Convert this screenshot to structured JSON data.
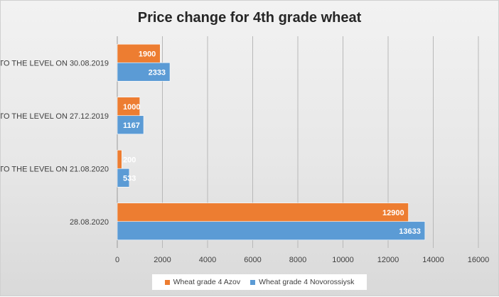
{
  "chart_data": {
    "type": "bar",
    "orientation": "horizontal",
    "title": "Price change for 4th grade wheat",
    "categories": [
      "TO THE LEVEL ON 30.08.2019",
      "TO THE LEVEL ON 27.12.2019",
      "TO THE LEVEL ON 21.08.2020",
      "28.08.2020"
    ],
    "series": [
      {
        "name": "Wheat grade 4 Azov",
        "color": "#ed7d31",
        "values": [
          1900,
          1000,
          200,
          12900
        ]
      },
      {
        "name": "Wheat grade 4 Novorossiysk",
        "color": "#5b9bd5",
        "values": [
          2333,
          1167,
          533,
          13633
        ]
      }
    ],
    "xlim": [
      0,
      16000
    ],
    "xticks": [
      0,
      2000,
      4000,
      6000,
      8000,
      10000,
      12000,
      14000,
      16000
    ],
    "grid": true,
    "legend_position": "bottom",
    "data_labels": true
  }
}
